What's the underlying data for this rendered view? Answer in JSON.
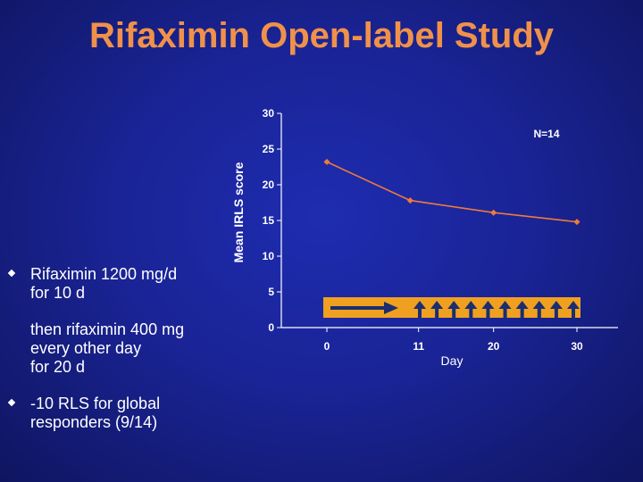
{
  "slide": {
    "title": "Rifaximin Open-label Study",
    "bullets": [
      "Rifaximin 1200 mg/d\nfor 10 d",
      "-10 RLS for global\nresponders (9/14)"
    ],
    "sub_text": "then rifaximin 400 mg\nevery other day\nfor 20 d"
  },
  "colors": {
    "title": "#f0914a",
    "series": "#f07a3a",
    "dosing_bar": "#f0a020",
    "arrows": "#1a2e70"
  },
  "chart_data": {
    "type": "line",
    "ylabel": "Mean IRLS score",
    "xlabel": "Day",
    "annotation": "N=14",
    "ylim": [
      0,
      30
    ],
    "yticks": [
      0,
      5,
      10,
      15,
      20,
      25,
      30
    ],
    "xticks": [
      0,
      11,
      20,
      30
    ],
    "grid": false,
    "series": [
      {
        "x": [
          0,
          10,
          20,
          30
        ],
        "y": [
          23.2,
          17.8,
          16.1,
          14.8
        ]
      }
    ],
    "dosing_schedule": {
      "daily_until_day": 10,
      "alternate_day_doses": 10
    }
  }
}
